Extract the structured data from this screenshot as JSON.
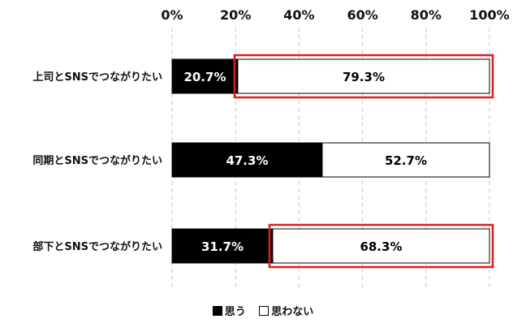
{
  "chart_data": {
    "type": "bar",
    "orientation": "horizontal",
    "stacked": true,
    "percent_scale": true,
    "categories": [
      "上司とSNSでつながりたい",
      "同期とSNSでつながりたい",
      "部下とSNSでつながりたい"
    ],
    "series": [
      {
        "name": "思う",
        "values": [
          20.7,
          47.3,
          31.7
        ],
        "labels": [
          "20.7%",
          "47.3%",
          "31.7%"
        ],
        "color": "#000000",
        "label_color": "#ffffff"
      },
      {
        "name": "思わない",
        "values": [
          79.3,
          52.7,
          68.3
        ],
        "labels": [
          "79.3%",
          "52.7%",
          "68.3%"
        ],
        "color": "#ffffff",
        "label_color": "#000000"
      }
    ],
    "xlim": [
      0,
      100
    ],
    "xticks": [
      "0%",
      "20%",
      "40%",
      "60%",
      "80%",
      "100%"
    ],
    "x_axis_position": "top",
    "grid": "dashed vertical",
    "legend": {
      "position": "bottom",
      "entries": [
        "思う",
        "思わない"
      ]
    },
    "highlight": {
      "series": "思わない",
      "categories": [
        "上司とSNSでつながりたい",
        "部下とSNSでつながりたい"
      ],
      "color": "#e01e1e"
    }
  }
}
